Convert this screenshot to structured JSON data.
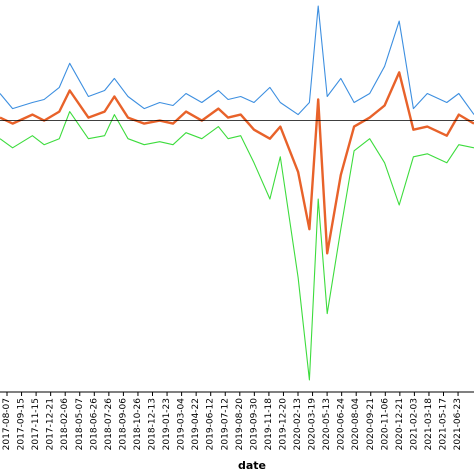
{
  "chart_data": {
    "type": "line",
    "xlabel": "date",
    "ylabel": "",
    "title": "",
    "legend": "none",
    "grid": false,
    "x_range": [
      "2017-08-07",
      "2021-08-09"
    ],
    "y_range": [
      -9,
      4
    ],
    "zero_line": 0,
    "colors": {
      "upper": "#3d8fe0",
      "middle": "#e8622a",
      "lower": "#3ddc3d",
      "zero_line": "#000000"
    },
    "tick_labels": [
      "2017-08-07",
      "2017-09-15",
      "2017-11-15",
      "2017-12-21",
      "2018-02-06",
      "2018-05-07",
      "2018-06-26",
      "2018-07-26",
      "2018-09-06",
      "2018-10-26",
      "2018-12-13",
      "2019-01-23",
      "2019-03-04",
      "2019-04-22",
      "2019-06-12",
      "2019-07-12",
      "2019-08-20",
      "2019-09-30",
      "2019-11-18",
      "2019-12-20",
      "2020-02-13",
      "2020-03-19",
      "2020-05-13",
      "2020-06-24",
      "2020-08-04",
      "2020-09-21",
      "2020-11-06",
      "2020-12-21",
      "2021-02-03",
      "2021-03-18",
      "2021-05-17",
      "2021-06-23"
    ],
    "x": [
      "2017-08-07",
      "2017-09-15",
      "2017-11-15",
      "2017-12-21",
      "2018-02-06",
      "2018-03-10",
      "2018-05-07",
      "2018-06-26",
      "2018-07-26",
      "2018-09-06",
      "2018-10-26",
      "2018-12-13",
      "2019-01-23",
      "2019-03-04",
      "2019-04-22",
      "2019-06-12",
      "2019-07-12",
      "2019-08-20",
      "2019-09-30",
      "2019-11-18",
      "2019-12-20",
      "2020-02-13",
      "2020-03-19",
      "2020-04-15",
      "2020-05-13",
      "2020-06-24",
      "2020-08-04",
      "2020-09-21",
      "2020-11-06",
      "2020-12-21",
      "2021-02-03",
      "2021-03-18",
      "2021-05-17",
      "2021-06-23",
      "2021-08-09"
    ],
    "series": [
      {
        "key": "upper",
        "values": [
          0.9,
          0.4,
          0.6,
          0.7,
          1.1,
          1.9,
          0.8,
          1.0,
          1.4,
          0.8,
          0.4,
          0.6,
          0.5,
          0.9,
          0.6,
          1.0,
          0.7,
          0.8,
          0.6,
          1.1,
          0.6,
          0.2,
          0.6,
          3.8,
          0.8,
          1.4,
          0.6,
          0.9,
          1.8,
          3.3,
          0.4,
          0.9,
          0.6,
          0.9,
          0.2
        ]
      },
      {
        "key": "middle",
        "values": [
          0.1,
          -0.1,
          0.2,
          0.0,
          0.3,
          1.0,
          0.1,
          0.3,
          0.8,
          0.1,
          -0.1,
          0.0,
          -0.1,
          0.3,
          0.0,
          0.4,
          0.1,
          0.2,
          -0.3,
          -0.6,
          -0.2,
          -1.7,
          -3.6,
          0.7,
          -4.4,
          -1.8,
          -0.2,
          0.1,
          0.5,
          1.6,
          -0.3,
          -0.2,
          -0.5,
          0.2,
          -0.1
        ]
      },
      {
        "key": "lower",
        "values": [
          -0.6,
          -0.9,
          -0.5,
          -0.8,
          -0.6,
          0.3,
          -0.6,
          -0.5,
          0.2,
          -0.6,
          -0.8,
          -0.7,
          -0.8,
          -0.4,
          -0.6,
          -0.2,
          -0.6,
          -0.5,
          -1.4,
          -2.6,
          -1.2,
          -5.2,
          -8.6,
          -2.6,
          -6.4,
          -3.6,
          -1.0,
          -0.6,
          -1.4,
          -2.8,
          -1.2,
          -1.1,
          -1.4,
          -0.8,
          -0.9
        ]
      }
    ]
  }
}
